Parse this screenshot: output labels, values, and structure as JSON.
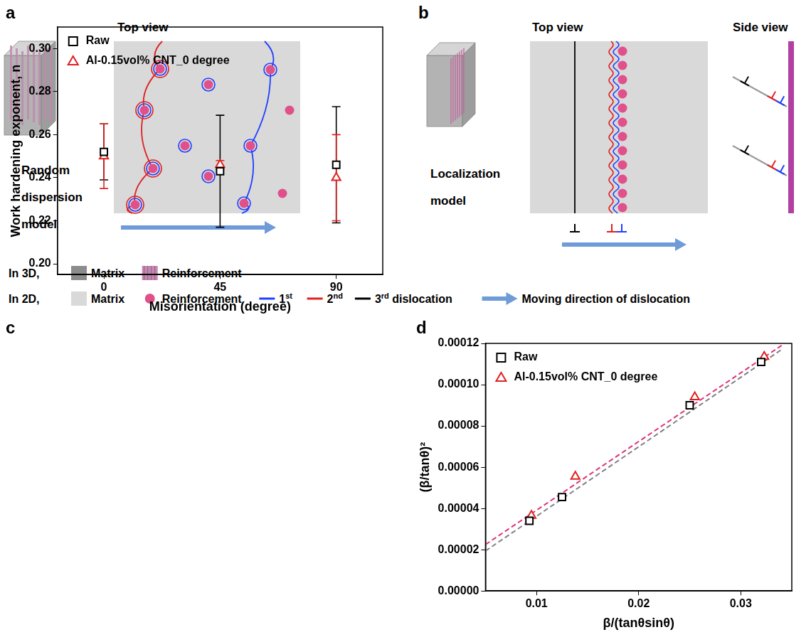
{
  "panel_letters": [
    "a",
    "b",
    "c",
    "d"
  ],
  "diagram_a": {
    "model": "Random dispersion model",
    "view": "Top view"
  },
  "diagram_b": {
    "model": "Localization model",
    "views": [
      "Top view",
      "Side view"
    ]
  },
  "key": [
    {
      "prefix": "In 3D,",
      "items": [
        "Matrix",
        "Reinforcement"
      ]
    },
    {
      "prefix": "In 2D,",
      "items": [
        "Matrix",
        "Reinforcement",
        "1st",
        "2nd",
        "3rd dislocation",
        "Moving direction of dislocation"
      ]
    }
  ],
  "chart_data": [
    {
      "type": "scatter",
      "x_label": "Misorientation (degree)",
      "y_label": "Work hardening exponent, n",
      "x": [
        0,
        45,
        90
      ],
      "xlim": [
        -18,
        108
      ],
      "xticks": [
        0,
        45,
        90
      ],
      "ylim": [
        0.195,
        0.31
      ],
      "yticks": [
        {
          "value": 0.2,
          "label": "0.20"
        },
        0.22,
        0.24,
        0.26,
        0.28,
        {
          "value": 0.3,
          "label": "0.30"
        }
      ],
      "grid": false,
      "legend": "upper left",
      "series": [
        {
          "name": "Raw",
          "color": "#000000",
          "marker": "square",
          "values": [
            0.252,
            0.243,
            0.246
          ],
          "errors": [
            0.013,
            0.026,
            0.027
          ]
        },
        {
          "name": "Al-0.15vol% CNT_0 degree",
          "color": "#e02020",
          "marker": "triangle",
          "values": [
            0.25,
            0.246,
            0.24
          ],
          "errors": [
            0.015,
            0.002,
            0.02
          ]
        }
      ]
    },
    {
      "type": "scatter",
      "x_label": "β/(tanθsinθ)",
      "y_label": "(β/tanθ)²",
      "xlim": [
        0.005,
        0.035
      ],
      "xticks": [
        0.01,
        0.02,
        0.03
      ],
      "ylim": [
        0,
        0.00012
      ],
      "yticks": [
        {
          "value": 0,
          "label": "0.00000"
        },
        {
          "value": 2e-05,
          "label": "0.00002"
        },
        {
          "value": 4e-05,
          "label": "0.00004"
        },
        {
          "value": 6e-05,
          "label": "0.00006"
        },
        {
          "value": 8e-05,
          "label": "0.00008"
        },
        {
          "value": 0.0001,
          "label": "0.00010"
        },
        {
          "value": 0.00012,
          "label": "0.00012"
        }
      ],
      "grid": false,
      "legend": "upper left",
      "series": [
        {
          "name": "Raw",
          "color": "#000000",
          "marker": "square",
          "x": [
            0.0093,
            0.0125,
            0.025,
            0.032
          ],
          "values": [
            3.4e-05,
            4.55e-05,
            9e-05,
            0.000111
          ],
          "fit": {
            "x": [
              0.005,
              0.034
            ],
            "values": [
              1.94e-05,
              0.000117
            ],
            "color": "#808080",
            "line_style": "dashed"
          }
        },
        {
          "name": "Al-0.15vol% CNT_0 degree",
          "color": "#e02020",
          "marker": "triangle",
          "x": [
            0.0095,
            0.0138,
            0.0255,
            0.0323
          ],
          "values": [
            3.65e-05,
            5.55e-05,
            9.4e-05,
            0.0001135
          ],
          "fit": {
            "x": [
              0.005,
              0.034
            ],
            "values": [
              2.25e-05,
              0.000119
            ],
            "color": "#e0307a",
            "line_style": "dashed"
          }
        }
      ]
    }
  ]
}
